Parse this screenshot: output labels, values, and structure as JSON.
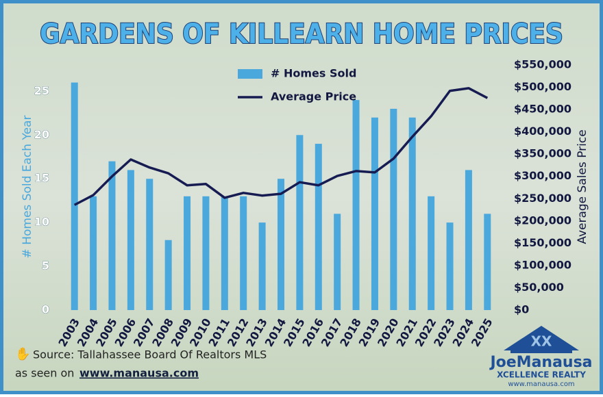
{
  "chart_data": {
    "type": "bar-line",
    "title": "GARDENS OF KILLEARN HOME PRICES",
    "y_label": "# Homes Sold Each Year",
    "y2_label": "Average Sales Price",
    "categories": [
      "2003",
      "2004",
      "2005",
      "2006",
      "2007",
      "2008",
      "2009",
      "2010",
      "2011",
      "2012",
      "2013",
      "2014",
      "2015",
      "2016",
      "2017",
      "2018",
      "2019",
      "2020",
      "2021",
      "2022",
      "2023",
      "2024",
      "2025"
    ],
    "series": [
      {
        "name": "# Homes Sold",
        "type": "bar",
        "color": "#4aa8dc",
        "values": [
          26,
          13,
          17,
          16,
          15,
          8,
          13,
          13,
          13,
          13,
          10,
          15,
          20,
          19,
          11,
          24,
          22,
          23,
          22,
          13,
          10,
          16,
          11
        ]
      },
      {
        "name": "Average Price",
        "type": "line",
        "axis": "y2",
        "color": "#161c52",
        "values": [
          236000,
          258000,
          300000,
          338000,
          320000,
          307000,
          280000,
          283000,
          252000,
          263000,
          257000,
          261000,
          287000,
          280000,
          301000,
          312000,
          309000,
          340000,
          389000,
          435000,
          492000,
          498000,
          476000
        ]
      }
    ],
    "ylim": [
      0,
      28
    ],
    "yticks": [
      0,
      5,
      10,
      15,
      20,
      25
    ],
    "y2lim": [
      0,
      550000
    ],
    "y2ticks": [
      {
        "value": 0,
        "label": "$0"
      },
      {
        "value": 50000,
        "label": "$50,000"
      },
      {
        "value": 100000,
        "label": "$100,000"
      },
      {
        "value": 150000,
        "label": "$150,000"
      },
      {
        "value": 200000,
        "label": "$200,000"
      },
      {
        "value": 250000,
        "label": "$250,000"
      },
      {
        "value": 300000,
        "label": "$300,000"
      },
      {
        "value": 350000,
        "label": "$350,000"
      },
      {
        "value": 400000,
        "label": "$400,000"
      },
      {
        "value": 450000,
        "label": "$450,000"
      },
      {
        "value": 500000,
        "label": "$500,000"
      },
      {
        "value": 550000,
        "label": "$550,000"
      }
    ],
    "legend": "top"
  },
  "footer": {
    "source": "Source: Tallahassee Board Of Realtors MLS",
    "seen_on": "as seen on",
    "url": "www.manausa.com"
  },
  "logo": {
    "name": "JoeManausa",
    "tagline": "XCELLENCE REALTY",
    "url": "www.manausa.com"
  }
}
